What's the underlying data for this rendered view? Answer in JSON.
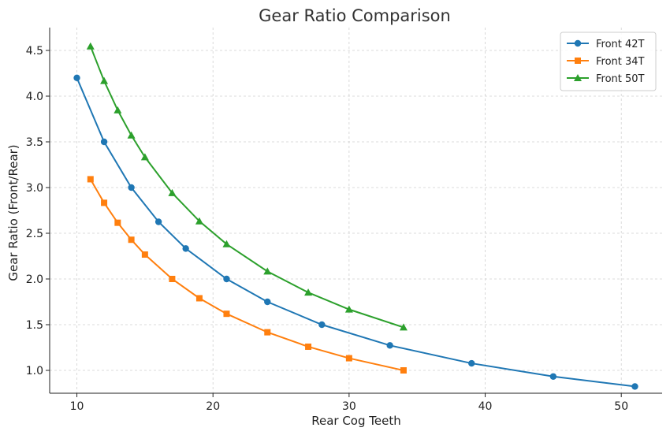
{
  "chart_data": {
    "type": "line",
    "title": "Gear Ratio Comparison",
    "xlabel": "Rear Cog Teeth",
    "ylabel": "Gear Ratio (Front/Rear)",
    "xlim": [
      8,
      53
    ],
    "ylim": [
      0.75,
      4.75
    ],
    "xticks": [
      10,
      20,
      30,
      40,
      50
    ],
    "yticks": [
      1.0,
      1.5,
      2.0,
      2.5,
      3.0,
      3.5,
      4.0,
      4.5
    ],
    "grid": true,
    "legend_position": "top-right",
    "series": [
      {
        "name": "Front 42T",
        "color": "#1f77b4",
        "marker": "circle",
        "x": [
          10,
          12,
          14,
          16,
          18,
          21,
          24,
          28,
          33,
          39,
          45,
          51
        ],
        "y": [
          4.2,
          3.5,
          3.0,
          2.625,
          2.333,
          2.0,
          1.75,
          1.5,
          1.273,
          1.077,
          0.933,
          0.824
        ]
      },
      {
        "name": "Front 34T",
        "color": "#ff7f0e",
        "marker": "square",
        "x": [
          11,
          12,
          13,
          14,
          15,
          17,
          19,
          21,
          24,
          27,
          30,
          34
        ],
        "y": [
          3.091,
          2.833,
          2.615,
          2.429,
          2.267,
          2.0,
          1.789,
          1.619,
          1.417,
          1.259,
          1.133,
          1.0
        ]
      },
      {
        "name": "Front 50T",
        "color": "#2ca02c",
        "marker": "triangle",
        "x": [
          11,
          12,
          13,
          14,
          15,
          17,
          19,
          21,
          24,
          27,
          30,
          34
        ],
        "y": [
          4.545,
          4.167,
          3.846,
          3.571,
          3.333,
          2.941,
          2.632,
          2.381,
          2.083,
          1.852,
          1.667,
          1.471
        ]
      }
    ]
  }
}
